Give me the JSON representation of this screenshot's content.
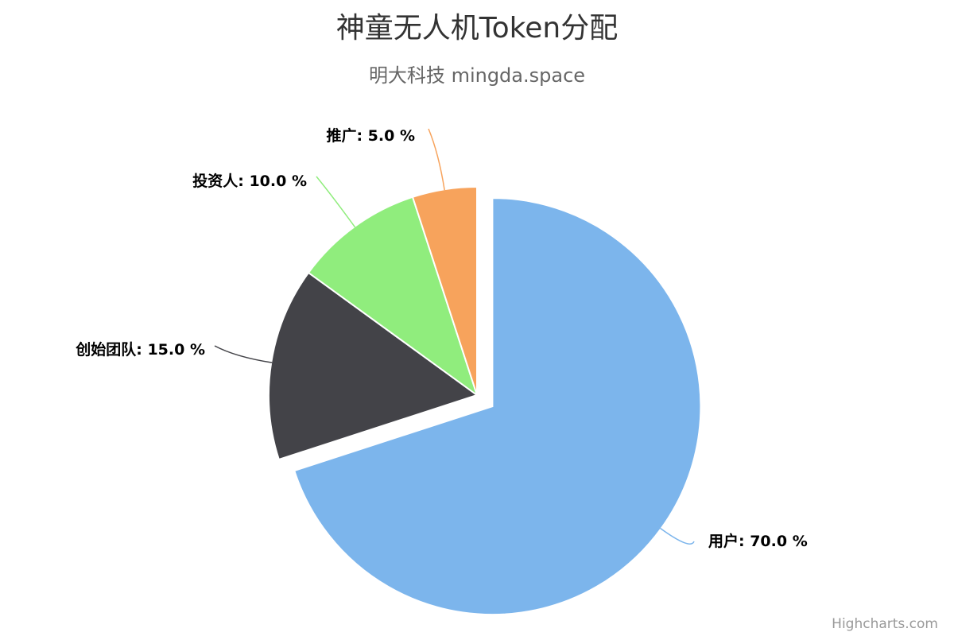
{
  "chart_data": {
    "type": "pie",
    "title": "神童无人机Token分配",
    "subtitle": "明大科技 mingda.space",
    "series": [
      {
        "data": [
          {
            "name": "用户",
            "value": 70.0,
            "label": "用户: 70.0 %",
            "color": "#7cb5ec",
            "sliced": true
          },
          {
            "name": "创始团队",
            "value": 15.0,
            "label": "创始团队: 15.0 %",
            "color": "#434348",
            "sliced": false
          },
          {
            "name": "投资人",
            "value": 10.0,
            "label": "投资人: 10.0 %",
            "color": "#90ed7d",
            "sliced": false
          },
          {
            "name": "推广",
            "value": 5.0,
            "label": "推广: 5.0 %",
            "color": "#f7a35c",
            "sliced": false
          }
        ]
      }
    ]
  },
  "credits": {
    "text": "Highcharts.com"
  }
}
